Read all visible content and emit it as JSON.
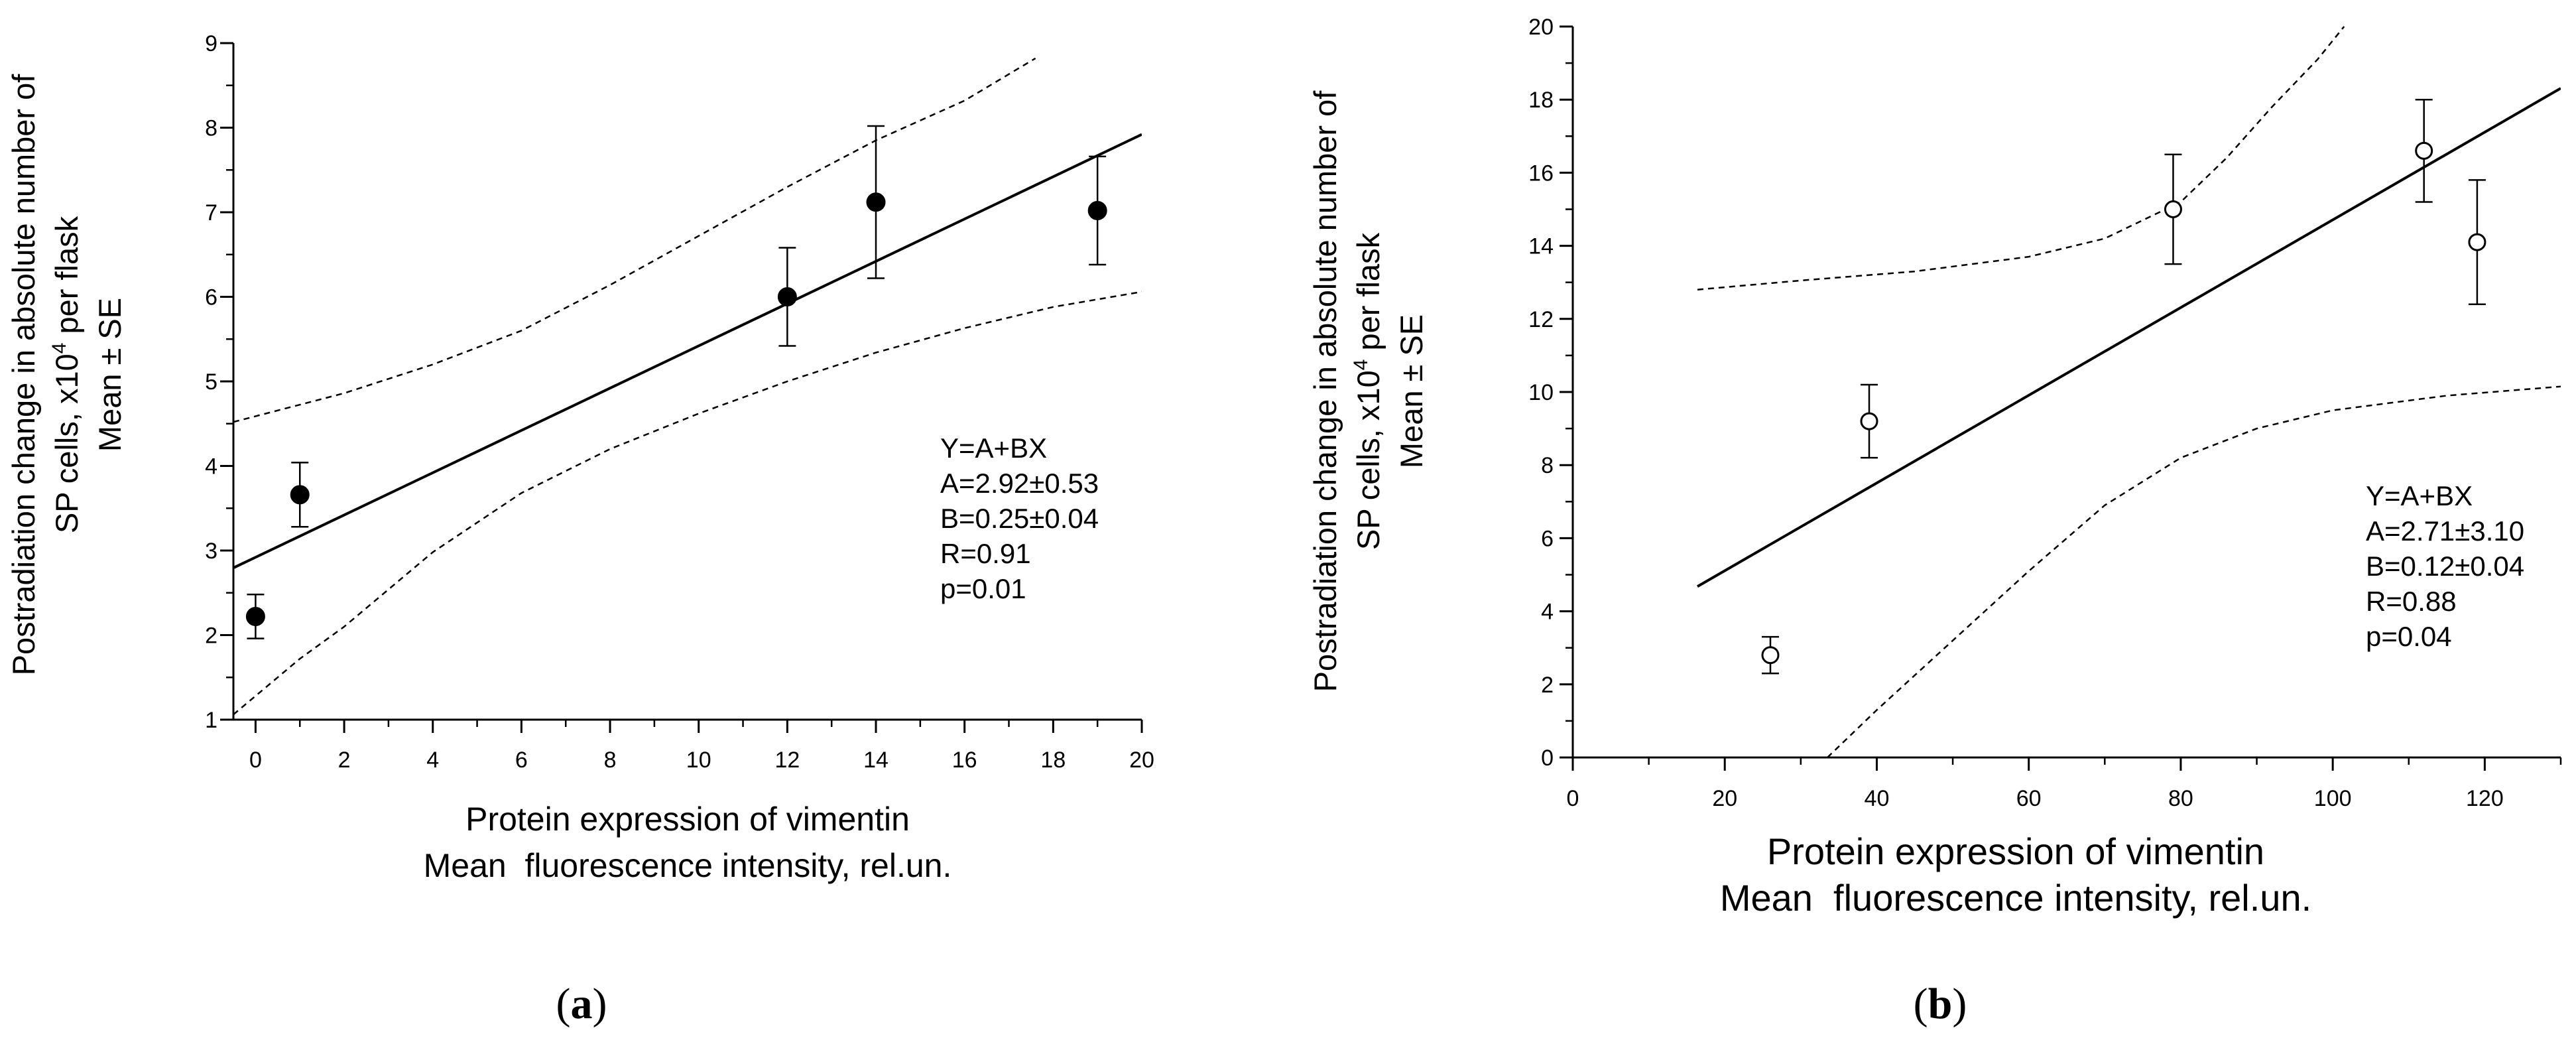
{
  "figure": {
    "panels": [
      "(a)",
      "(b)"
    ]
  },
  "chart_data": [
    {
      "type": "scatter",
      "panel_label": "(a)",
      "panel_letter": "a",
      "marker": "filled-circle",
      "xlabel": [
        "Protein expression of vimentin",
        "Mean  fluorescence intensity, rel.un."
      ],
      "ylabel_line1": "Postradiation change in absolute number of",
      "ylabel_line2_pre": "SP cells, x10",
      "ylabel_line2_sup": "4",
      "ylabel_line2_post": " per flask",
      "ylabel_line3": "Mean ± SE",
      "xlim": [
        -0.5,
        20
      ],
      "ylim": [
        1,
        9
      ],
      "xticks": [
        0,
        2,
        4,
        6,
        8,
        10,
        12,
        14,
        16,
        18,
        20
      ],
      "yticks": [
        1,
        2,
        3,
        4,
        5,
        6,
        7,
        8,
        9
      ],
      "points": [
        {
          "x": 0,
          "y": 2.22,
          "err": 0.26
        },
        {
          "x": 1,
          "y": 3.66,
          "err": 0.38
        },
        {
          "x": 12,
          "y": 6.0,
          "err": 0.58
        },
        {
          "x": 14,
          "y": 7.12,
          "err": 0.9
        },
        {
          "x": 19,
          "y": 7.02,
          "err": 0.64
        }
      ],
      "fit": {
        "A": 2.92,
        "B": 0.25,
        "x_range": [
          -0.5,
          20
        ]
      },
      "confidence_band": {
        "upper": [
          [
            -0.5,
            4.52
          ],
          [
            2,
            4.86
          ],
          [
            4,
            5.2
          ],
          [
            6,
            5.6
          ],
          [
            8,
            6.14
          ],
          [
            10,
            6.72
          ],
          [
            12,
            7.3
          ],
          [
            14,
            7.85
          ],
          [
            16,
            8.32
          ],
          [
            17.6,
            8.82
          ]
        ],
        "lower": [
          [
            -0.5,
            1.06
          ],
          [
            1,
            1.72
          ],
          [
            2,
            2.1
          ],
          [
            4,
            2.98
          ],
          [
            6,
            3.68
          ],
          [
            8,
            4.2
          ],
          [
            10,
            4.62
          ],
          [
            12,
            5.0
          ],
          [
            14,
            5.34
          ],
          [
            16,
            5.63
          ],
          [
            18,
            5.88
          ],
          [
            20,
            6.06
          ]
        ]
      },
      "annotation": [
        "Y=A+BX",
        "A=2.92±0.53",
        "B=0.25±0.04",
        "R=0.91",
        "p=0.01"
      ]
    },
    {
      "type": "scatter",
      "panel_label": "(b)",
      "panel_letter": "b",
      "marker": "open-circle",
      "xlabel": [
        "Protein expression of vimentin",
        "Mean  fluorescence intensity, rel.un."
      ],
      "ylabel_line1": "Postradiation change in absolute number of",
      "ylabel_line2_pre": "SP cells, x10",
      "ylabel_line2_sup": "4",
      "ylabel_line2_post": " per flask",
      "ylabel_line3": "Mean ± SE",
      "xlim": [
        0,
        130
      ],
      "ylim": [
        0,
        20
      ],
      "xticks": [
        0,
        20,
        40,
        60,
        80,
        100,
        120
      ],
      "yticks": [
        0,
        2,
        4,
        6,
        8,
        10,
        12,
        14,
        16,
        18,
        20
      ],
      "points": [
        {
          "x": 26,
          "y": 2.8,
          "err": 0.5
        },
        {
          "x": 39,
          "y": 9.2,
          "err": 1.0
        },
        {
          "x": 79,
          "y": 15.0,
          "err": 1.5
        },
        {
          "x": 112,
          "y": 16.6,
          "err": 1.4
        },
        {
          "x": 119,
          "y": 14.1,
          "err": 1.7
        }
      ],
      "fit": {
        "A": 2.71,
        "B": 0.12,
        "x_range": [
          16.4,
          130
        ]
      },
      "confidence_band": {
        "upper": [
          [
            16.4,
            12.8
          ],
          [
            30,
            13.05
          ],
          [
            45,
            13.3
          ],
          [
            60,
            13.7
          ],
          [
            70,
            14.2
          ],
          [
            80,
            15.2
          ],
          [
            86,
            16.4
          ],
          [
            92,
            17.8
          ],
          [
            98,
            19.1
          ],
          [
            101.5,
            20.0
          ]
        ],
        "lower": [
          [
            33.5,
            0.0
          ],
          [
            40,
            1.3
          ],
          [
            50,
            3.2
          ],
          [
            60,
            5.1
          ],
          [
            70,
            6.9
          ],
          [
            80,
            8.2
          ],
          [
            90,
            9.0
          ],
          [
            100,
            9.5
          ],
          [
            115,
            9.9
          ],
          [
            130,
            10.15
          ]
        ]
      },
      "annotation": [
        "Y=A+BX",
        "A=2.71±3.10",
        "B=0.12±0.04",
        "R=0.88",
        "p=0.04"
      ]
    }
  ]
}
